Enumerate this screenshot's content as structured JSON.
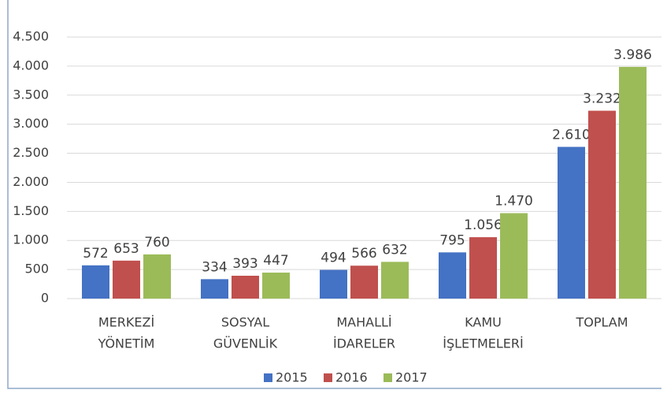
{
  "chart_data": {
    "type": "bar",
    "categories": [
      [
        "MERKEZİ",
        "YÖNETİM"
      ],
      [
        "SOSYAL",
        "GÜVENLİK"
      ],
      [
        "MAHALLİ",
        "İDARELER"
      ],
      [
        "KAMU",
        "İŞLETMELERİ"
      ],
      [
        "TOPLAM"
      ]
    ],
    "series": [
      {
        "name": "2015",
        "color": "#4472c4",
        "values": [
          572,
          334,
          494,
          795,
          2610
        ],
        "value_labels": [
          "572",
          "334",
          "494",
          "795",
          "2.610"
        ]
      },
      {
        "name": "2016",
        "color": "#c0504d",
        "values": [
          653,
          393,
          566,
          1056,
          3232
        ],
        "value_labels": [
          "653",
          "393",
          "566",
          "1.056",
          "3.232"
        ]
      },
      {
        "name": "2017",
        "color": "#9bbb59",
        "values": [
          760,
          447,
          632,
          1470,
          3986
        ],
        "value_labels": [
          "760",
          "447",
          "632",
          "1.470",
          "3.986"
        ]
      }
    ],
    "ylim": [
      0,
      4500
    ],
    "yticks": [
      0,
      500,
      {
        "value": 1000,
        "label": "1.000"
      },
      {
        "value": 1500,
        "label": "1.500"
      },
      {
        "value": 2000,
        "label": "2.000"
      },
      {
        "value": 2500,
        "label": "2.500"
      },
      {
        "value": 3000,
        "label": "3.000"
      },
      {
        "value": 3500,
        "label": "3.500"
      },
      {
        "value": 4000,
        "label": "4.000"
      },
      {
        "value": 4500,
        "label": "4.500"
      }
    ],
    "grid": true,
    "legend": "bottom"
  }
}
